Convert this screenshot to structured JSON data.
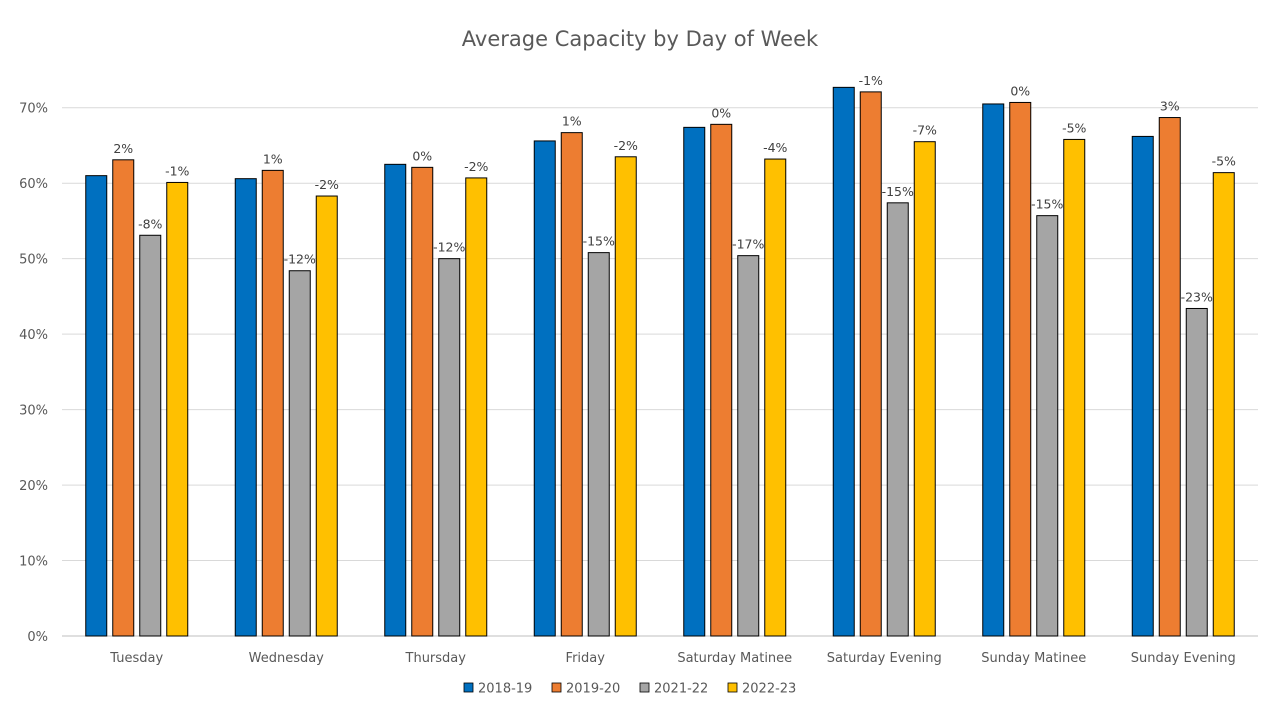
{
  "chart_data": {
    "type": "bar",
    "title": "Average Capacity by Day of Week",
    "xlabel": "",
    "ylabel": "",
    "ylim": [
      0,
      0.75
    ],
    "yticks": [
      0,
      0.1,
      0.2,
      0.3,
      0.4,
      0.5,
      0.6,
      0.7
    ],
    "ytick_labels": [
      "0%",
      "10%",
      "20%",
      "30%",
      "40%",
      "50%",
      "60%",
      "70%"
    ],
    "grid": true,
    "legend_position": "bottom",
    "categories": [
      "Tuesday",
      "Wednesday",
      "Thursday",
      "Friday",
      "Saturday Matinee",
      "Saturday Evening",
      "Sunday Matinee",
      "Sunday Evening"
    ],
    "series": [
      {
        "name": "2018-19",
        "color": "#0070c0",
        "values": [
          0.61,
          0.606,
          0.625,
          0.656,
          0.674,
          0.727,
          0.705,
          0.662
        ],
        "labels": [
          "",
          "",
          "",
          "",
          "",
          "",
          "",
          ""
        ]
      },
      {
        "name": "2019-20",
        "color": "#ed7d31",
        "values": [
          0.631,
          0.617,
          0.621,
          0.667,
          0.678,
          0.721,
          0.707,
          0.687
        ],
        "labels": [
          "2%",
          "1%",
          "0%",
          "1%",
          "0%",
          "-1%",
          "0%",
          "3%"
        ]
      },
      {
        "name": "2021-22",
        "color": "#a5a5a5",
        "values": [
          0.531,
          0.484,
          0.5,
          0.508,
          0.504,
          0.574,
          0.557,
          0.434
        ],
        "labels": [
          "-8%",
          "-12%",
          "-12%",
          "-15%",
          "-17%",
          "-15%",
          "-15%",
          "-23%"
        ]
      },
      {
        "name": "2022-23",
        "color": "#ffc000",
        "values": [
          0.601,
          0.583,
          0.607,
          0.635,
          0.632,
          0.655,
          0.658,
          0.614
        ],
        "labels": [
          "-1%",
          "-2%",
          "-2%",
          "-2%",
          "-4%",
          "-7%",
          "-5%",
          "-5%"
        ]
      }
    ]
  }
}
